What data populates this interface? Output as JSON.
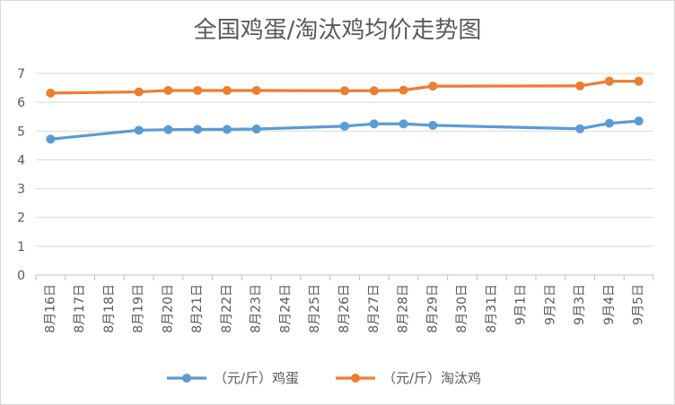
{
  "chart_data": {
    "type": "line",
    "title": "全国鸡蛋/淘汰鸡均价走势图",
    "categories": [
      "8月16日",
      "8月17日",
      "8月18日",
      "8月19日",
      "8月20日",
      "8月21日",
      "8月22日",
      "8月23日",
      "8月24日",
      "8月25日",
      "8月26日",
      "8月27日",
      "8月28日",
      "8月29日",
      "8月30日",
      "8月31日",
      "9月1日",
      "9月2日",
      "9月3日",
      "9月4日",
      "9月5日"
    ],
    "ylim": [
      0,
      7
    ],
    "yticks": [
      0,
      1,
      2,
      3,
      4,
      5,
      6,
      7
    ],
    "grid": true,
    "legend_position": "bottom",
    "series": [
      {
        "name": "（元/斤）鸡蛋",
        "color": "#5b9bd5",
        "values": [
          4.72,
          null,
          null,
          5.03,
          5.05,
          5.06,
          5.06,
          5.07,
          null,
          null,
          5.17,
          5.25,
          5.25,
          5.2,
          null,
          null,
          null,
          null,
          5.08,
          5.27,
          5.35
        ]
      },
      {
        "name": "（元/斤）淘汰鸡",
        "color": "#ed7d31",
        "values": [
          6.32,
          null,
          null,
          6.36,
          6.41,
          6.41,
          6.41,
          6.41,
          null,
          null,
          6.4,
          6.4,
          6.42,
          6.56,
          null,
          null,
          null,
          null,
          6.57,
          6.73,
          6.73
        ]
      }
    ]
  }
}
